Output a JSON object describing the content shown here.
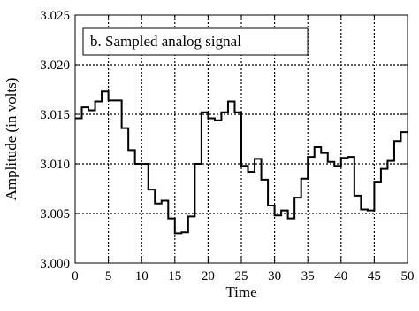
{
  "chart_data": {
    "type": "line",
    "step": true,
    "annotation": "b. Sampled analog signal",
    "xlabel": "Time",
    "ylabel": "Amplitude (in volts)",
    "xlim": [
      0,
      50
    ],
    "ylim": [
      3.0,
      3.025
    ],
    "grid": true,
    "xticks": [
      "0",
      "5",
      "10",
      "15",
      "20",
      "25",
      "30",
      "35",
      "40",
      "45",
      "50"
    ],
    "yticks": [
      "3.000",
      "3.005",
      "3.010",
      "3.015",
      "3.020",
      "3.025"
    ],
    "series": [
      {
        "x": [
          0,
          1,
          2,
          3,
          4,
          5,
          6,
          7,
          8,
          9,
          10,
          11,
          12,
          13,
          14,
          15,
          16,
          17,
          18,
          19,
          20,
          21,
          22,
          23,
          24,
          25,
          26,
          27,
          28,
          29,
          30,
          31,
          32,
          33,
          34,
          35,
          36,
          37,
          38,
          39,
          40,
          41,
          42,
          43,
          44,
          45,
          46,
          47,
          48,
          49,
          50
        ],
        "y": [
          3.0146,
          3.0157,
          3.0154,
          3.0163,
          3.0173,
          3.0164,
          3.0164,
          3.0136,
          3.0114,
          3.01,
          3.01,
          3.0074,
          3.006,
          3.0063,
          3.0045,
          3.003,
          3.0031,
          3.0047,
          3.01,
          3.0152,
          3.0146,
          3.0144,
          3.0152,
          3.0163,
          3.0152,
          3.0098,
          3.0092,
          3.0105,
          3.0084,
          3.0058,
          3.0048,
          3.0053,
          3.0045,
          3.0066,
          3.0085,
          3.0107,
          3.0117,
          3.0111,
          3.0102,
          3.0098,
          3.0106,
          3.0107,
          3.0068,
          3.0054,
          3.0053,
          3.0082,
          3.0095,
          3.0103,
          3.0123,
          3.0132,
          3.0132
        ]
      }
    ]
  }
}
